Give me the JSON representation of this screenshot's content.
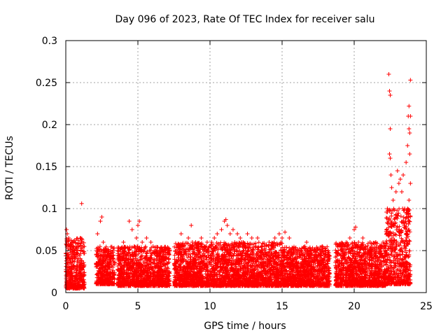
{
  "chart_data": {
    "type": "scatter",
    "title": "Day 096 of 2023, Rate Of TEC Index for receiver salu",
    "xlabel": "GPS time / hours",
    "ylabel": "ROTI / TECUs",
    "xlim": [
      0,
      25
    ],
    "ylim": [
      0,
      0.3
    ],
    "x_ticks": [
      "0",
      "5",
      "10",
      "15",
      "20",
      "25"
    ],
    "y_ticks": [
      "0",
      "0.05",
      "0.1",
      "0.15",
      "0.2",
      "0.25",
      "0.3"
    ],
    "grid": true,
    "marker": "+",
    "marker_color": "#ff0000",
    "background_band": {
      "description": "dense cloud of low ROTI values; representative envelope per time segment",
      "segments": [
        {
          "x_start": 0.0,
          "x_end": 1.3,
          "y_low": 0.005,
          "y_high": 0.065
        },
        {
          "x_start": 2.1,
          "x_end": 3.4,
          "y_low": 0.01,
          "y_high": 0.055
        },
        {
          "x_start": 3.6,
          "x_end": 7.2,
          "y_low": 0.008,
          "y_high": 0.055
        },
        {
          "x_start": 7.5,
          "x_end": 11.0,
          "y_low": 0.008,
          "y_high": 0.06
        },
        {
          "x_start": 11.0,
          "x_end": 15.0,
          "y_low": 0.008,
          "y_high": 0.06
        },
        {
          "x_start": 15.0,
          "x_end": 18.3,
          "y_low": 0.008,
          "y_high": 0.055
        },
        {
          "x_start": 18.7,
          "x_end": 22.2,
          "y_low": 0.008,
          "y_high": 0.06
        },
        {
          "x_start": 22.2,
          "x_end": 23.9,
          "y_low": 0.01,
          "y_high": 0.1
        }
      ]
    },
    "series": [
      {
        "name": "ROTI",
        "points": [
          [
            0.05,
            0.075
          ],
          [
            0.1,
            0.07
          ],
          [
            0.2,
            0.065
          ],
          [
            0.3,
            0.055
          ],
          [
            0.4,
            0.045
          ],
          [
            0.5,
            0.06
          ],
          [
            0.6,
            0.05
          ],
          [
            0.7,
            0.045
          ],
          [
            0.9,
            0.062
          ],
          [
            1.0,
            0.065
          ],
          [
            1.1,
            0.106
          ],
          [
            2.2,
            0.07
          ],
          [
            2.4,
            0.085
          ],
          [
            2.5,
            0.09
          ],
          [
            2.6,
            0.06
          ],
          [
            2.9,
            0.045
          ],
          [
            3.3,
            0.04
          ],
          [
            3.6,
            0.05
          ],
          [
            4.0,
            0.06
          ],
          [
            4.4,
            0.085
          ],
          [
            4.6,
            0.075
          ],
          [
            4.9,
            0.065
          ],
          [
            5.0,
            0.08
          ],
          [
            5.1,
            0.085
          ],
          [
            5.3,
            0.06
          ],
          [
            5.6,
            0.065
          ],
          [
            5.9,
            0.06
          ],
          [
            6.3,
            0.05
          ],
          [
            6.8,
            0.05
          ],
          [
            7.6,
            0.05
          ],
          [
            8.0,
            0.07
          ],
          [
            8.5,
            0.065
          ],
          [
            8.7,
            0.08
          ],
          [
            9.0,
            0.06
          ],
          [
            9.4,
            0.065
          ],
          [
            9.8,
            0.06
          ],
          [
            10.1,
            0.055
          ],
          [
            10.3,
            0.065
          ],
          [
            10.5,
            0.07
          ],
          [
            10.8,
            0.075
          ],
          [
            11.0,
            0.085
          ],
          [
            11.1,
            0.087
          ],
          [
            11.2,
            0.08
          ],
          [
            11.4,
            0.07
          ],
          [
            11.6,
            0.075
          ],
          [
            11.9,
            0.07
          ],
          [
            12.1,
            0.065
          ],
          [
            12.3,
            0.06
          ],
          [
            12.6,
            0.07
          ],
          [
            12.9,
            0.065
          ],
          [
            13.3,
            0.065
          ],
          [
            13.6,
            0.05
          ],
          [
            14.1,
            0.06
          ],
          [
            14.5,
            0.065
          ],
          [
            14.8,
            0.07
          ],
          [
            15.0,
            0.065
          ],
          [
            15.2,
            0.072
          ],
          [
            15.5,
            0.065
          ],
          [
            15.8,
            0.05
          ],
          [
            16.3,
            0.05
          ],
          [
            16.7,
            0.06
          ],
          [
            17.3,
            0.05
          ],
          [
            17.8,
            0.055
          ],
          [
            18.2,
            0.05
          ],
          [
            18.9,
            0.05
          ],
          [
            19.3,
            0.055
          ],
          [
            19.7,
            0.065
          ],
          [
            20.0,
            0.075
          ],
          [
            20.1,
            0.078
          ],
          [
            20.3,
            0.06
          ],
          [
            20.6,
            0.065
          ],
          [
            20.8,
            0.055
          ],
          [
            21.1,
            0.06
          ],
          [
            21.5,
            0.06
          ],
          [
            21.8,
            0.05
          ],
          [
            22.0,
            0.06
          ],
          [
            22.3,
            0.1
          ],
          [
            22.4,
            0.26
          ],
          [
            22.45,
            0.24
          ],
          [
            22.5,
            0.235
          ],
          [
            22.5,
            0.195
          ],
          [
            22.45,
            0.165
          ],
          [
            22.5,
            0.16
          ],
          [
            22.55,
            0.14
          ],
          [
            22.6,
            0.125
          ],
          [
            22.7,
            0.11
          ],
          [
            22.9,
            0.12
          ],
          [
            23.0,
            0.145
          ],
          [
            23.1,
            0.13
          ],
          [
            23.2,
            0.135
          ],
          [
            23.3,
            0.12
          ],
          [
            23.4,
            0.14
          ],
          [
            23.5,
            0.1
          ],
          [
            23.6,
            0.155
          ],
          [
            23.7,
            0.175
          ],
          [
            23.75,
            0.21
          ],
          [
            23.8,
            0.222
          ],
          [
            23.8,
            0.195
          ],
          [
            23.85,
            0.19
          ],
          [
            23.9,
            0.253
          ],
          [
            23.9,
            0.21
          ],
          [
            23.85,
            0.165
          ],
          [
            23.9,
            0.13
          ],
          [
            23.8,
            0.11
          ],
          [
            23.7,
            0.1
          ]
        ]
      }
    ]
  }
}
